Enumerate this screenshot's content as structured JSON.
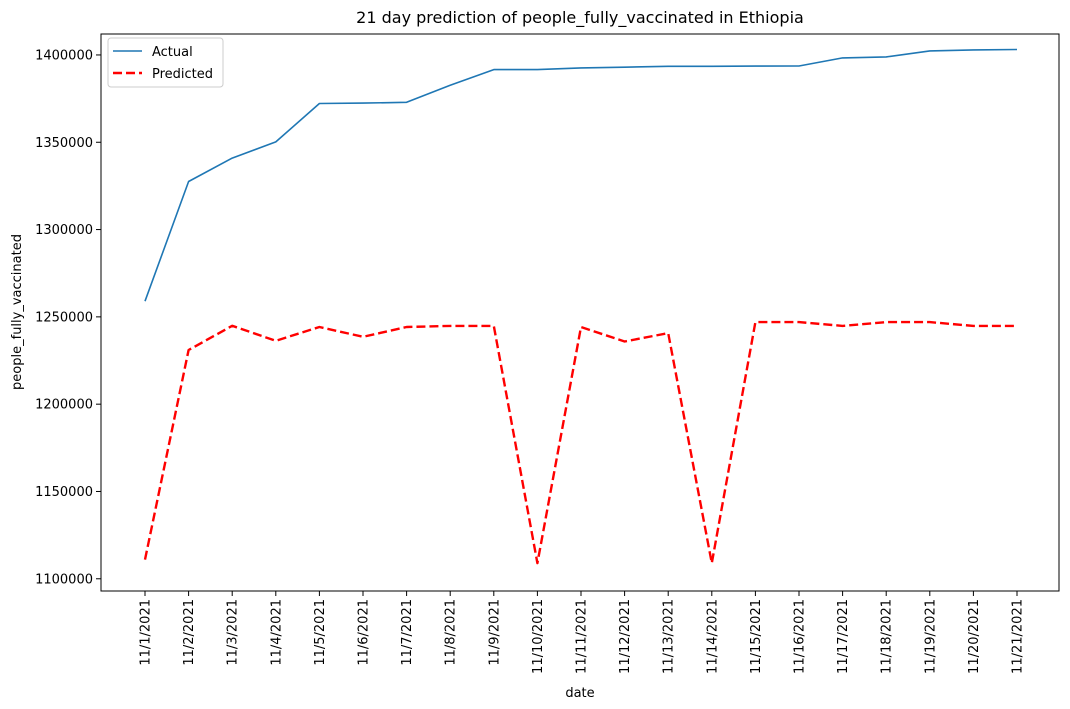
{
  "chart_data": {
    "type": "line",
    "title": "21 day prediction of people_fully_vaccinated in Ethiopia",
    "xlabel": "date",
    "ylabel": "people_fully_vaccinated",
    "categories": [
      "11/1/2021",
      "11/2/2021",
      "11/3/2021",
      "11/4/2021",
      "11/5/2021",
      "11/6/2021",
      "11/7/2021",
      "11/8/2021",
      "11/9/2021",
      "11/10/2021",
      "11/11/2021",
      "11/12/2021",
      "11/13/2021",
      "11/14/2021",
      "11/15/2021",
      "11/16/2021",
      "11/17/2021",
      "11/18/2021",
      "11/19/2021",
      "11/20/2021",
      "11/21/2021"
    ],
    "yticks": [
      1100000,
      1150000,
      1200000,
      1250000,
      1300000,
      1350000,
      1400000
    ],
    "ytick_labels": [
      "1100000",
      "1150000",
      "1200000",
      "1250000",
      "1300000",
      "1350000",
      "1400000"
    ],
    "ylim": [
      1093000,
      1412000
    ],
    "grid": false,
    "legend_position": "upper-left",
    "series": [
      {
        "name": "Actual",
        "color": "#1f77b4",
        "style": "solid",
        "values": [
          1259000,
          1327500,
          1340900,
          1350200,
          1372200,
          1372400,
          1372900,
          1382700,
          1391600,
          1391600,
          1392600,
          1393000,
          1393500,
          1393500,
          1393600,
          1393700,
          1398300,
          1398900,
          1402300,
          1402900,
          1403100
        ]
      },
      {
        "name": "Predicted",
        "color": "#ff0000",
        "style": "dashed",
        "values": [
          1111000,
          1231000,
          1244900,
          1236300,
          1244200,
          1238600,
          1244200,
          1244800,
          1244800,
          1109000,
          1244200,
          1235900,
          1240700,
          1109000,
          1247000,
          1247000,
          1244800,
          1247000,
          1247000,
          1244800,
          1244800
        ]
      }
    ]
  }
}
